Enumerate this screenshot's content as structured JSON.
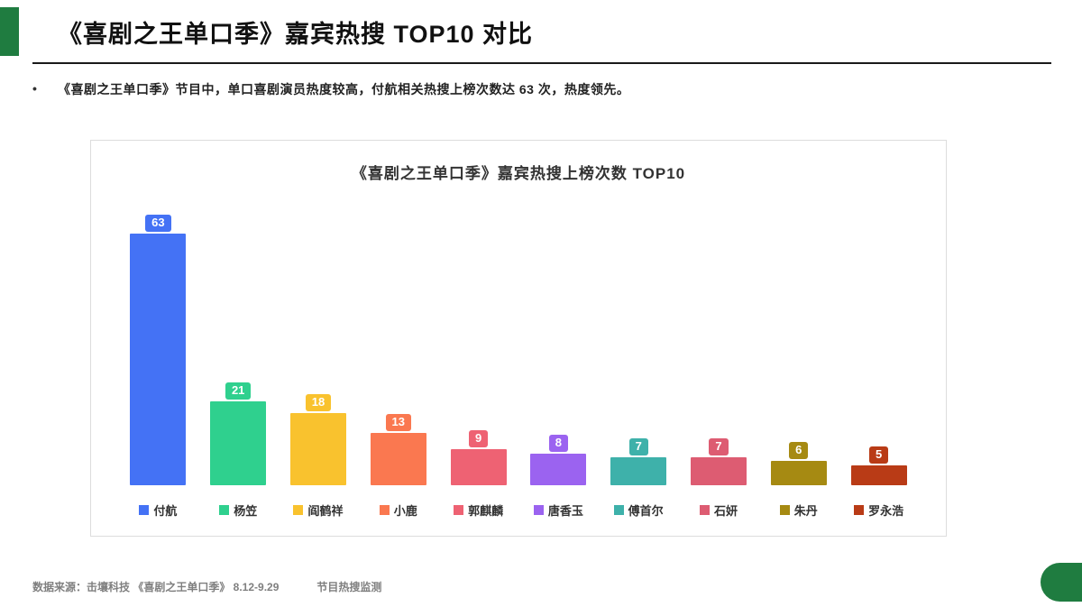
{
  "slide": {
    "title": "《喜剧之王单口季》嘉宾热搜 TOP10 对比",
    "bullet_marker": "•",
    "bullet_text": "《喜剧之王单口季》节目中，单口喜剧演员热度较高，付航相关热搜上榜次数达 63 次，热度领先。",
    "footer_source": "数据来源：击壤科技 《喜剧之王单口季》 8.12-9.29",
    "footer_note": "节目热搜监测",
    "accent_color": "#1f7c40"
  },
  "chart_data": {
    "type": "bar",
    "title": "《喜剧之王单口季》嘉宾热搜上榜次数 TOP10",
    "categories": [
      "付航",
      "杨笠",
      "阎鹤祥",
      "小鹿",
      "郭麒麟",
      "唐香玉",
      "傅首尔",
      "石妍",
      "朱丹",
      "罗永浩"
    ],
    "values": [
      63,
      21,
      18,
      13,
      9,
      8,
      7,
      7,
      6,
      5
    ],
    "colors": [
      "#4472f5",
      "#2fd08e",
      "#f9c22e",
      "#fa7850",
      "#ee6273",
      "#9b63f0",
      "#3eb1aa",
      "#dd5c72",
      "#a68a12",
      "#b93b16"
    ],
    "xlabel": "",
    "ylabel": "",
    "ylim": [
      0,
      70
    ],
    "grid": false,
    "legend_position": "bottom",
    "value_labels": true
  }
}
